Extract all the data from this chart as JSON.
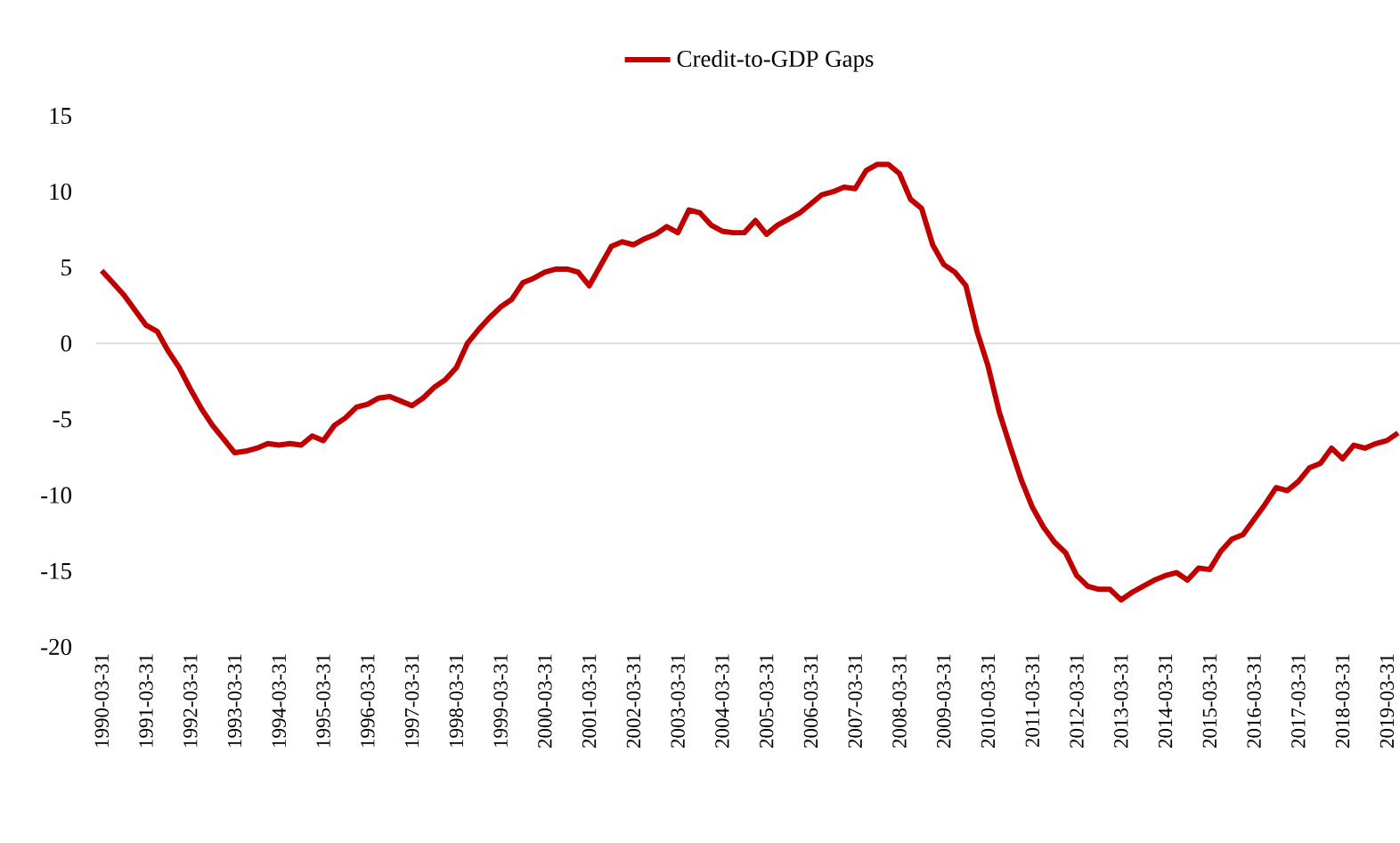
{
  "chart_data": {
    "type": "line",
    "categories": [
      "1990-03-31",
      null,
      null,
      null,
      "1991-03-31",
      null,
      null,
      null,
      "1992-03-31",
      null,
      null,
      null,
      "1993-03-31",
      null,
      null,
      null,
      "1994-03-31",
      null,
      null,
      null,
      "1995-03-31",
      null,
      null,
      null,
      "1996-03-31",
      null,
      null,
      null,
      "1997-03-31",
      null,
      null,
      null,
      "1998-03-31",
      null,
      null,
      null,
      "1999-03-31",
      null,
      null,
      null,
      "2000-03-31",
      null,
      null,
      null,
      "2001-03-31",
      null,
      null,
      null,
      "2002-03-31",
      null,
      null,
      null,
      "2003-03-31",
      null,
      null,
      null,
      "2004-03-31",
      null,
      null,
      null,
      "2005-03-31",
      null,
      null,
      null,
      "2006-03-31",
      null,
      null,
      null,
      "2007-03-31",
      null,
      null,
      null,
      "2008-03-31",
      null,
      null,
      null,
      "2009-03-31",
      null,
      null,
      null,
      "2010-03-31",
      null,
      null,
      null,
      "2011-03-31",
      null,
      null,
      null,
      "2012-03-31",
      null,
      null,
      null,
      "2013-03-31",
      null,
      null,
      null,
      "2014-03-31",
      null,
      null,
      null,
      "2015-03-31",
      null,
      null,
      null,
      "2016-03-31",
      null,
      null,
      null,
      "2017-03-31",
      null,
      null,
      null,
      "2018-03-31",
      null,
      null,
      null,
      "2019-03-31",
      null
    ],
    "series": [
      {
        "name": "Credit-to-GDP Gaps",
        "color": "#c00000",
        "values": [
          4.8,
          4.0,
          3.2,
          2.2,
          1.2,
          0.8,
          -0.5,
          -1.6,
          -3.0,
          -4.3,
          -5.4,
          -6.3,
          -7.2,
          -7.1,
          -6.9,
          -6.6,
          -6.7,
          -6.6,
          -6.7,
          -6.1,
          -6.4,
          -5.4,
          -4.9,
          -4.2,
          -4.0,
          -3.6,
          -3.5,
          -3.8,
          -4.1,
          -3.6,
          -2.9,
          -2.4,
          -1.6,
          0,
          0.9,
          1.7,
          2.4,
          2.9,
          4.0,
          4.3,
          4.7,
          4.9,
          4.9,
          4.7,
          3.8,
          5.1,
          6.4,
          6.7,
          6.5,
          6.9,
          7.2,
          7.7,
          7.3,
          8.8,
          8.6,
          7.8,
          7.4,
          7.3,
          7.3,
          8.1,
          7.2,
          7.8,
          8.2,
          8.6,
          9.2,
          9.8,
          10.0,
          10.3,
          10.2,
          11.4,
          11.8,
          11.8,
          11.2,
          9.5,
          8.9,
          6.5,
          5.2,
          4.7,
          3.8,
          0.8,
          -1.5,
          -4.5,
          -6.8,
          -9.0,
          -10.8,
          -12.1,
          -13.1,
          -13.8,
          -15.3,
          -16.0,
          -16.2,
          -16.2,
          -16.9,
          -16.4,
          -16.0,
          -15.6,
          -15.3,
          -15.1,
          -15.6,
          -14.8,
          -14.9,
          -13.7,
          -12.9,
          -12.6,
          -11.6,
          -10.6,
          -9.5,
          -9.7,
          -9.1,
          -8.2,
          -7.9,
          -6.9,
          -7.6,
          -6.7,
          -6.9,
          -6.6,
          -6.4,
          -5.9
        ]
      }
    ],
    "ylim": [
      -20,
      15
    ],
    "yticks": [
      -20,
      -15,
      -10,
      -5,
      0,
      5,
      10,
      15
    ],
    "legend": "top",
    "marker": "none",
    "line_style": "solid"
  }
}
